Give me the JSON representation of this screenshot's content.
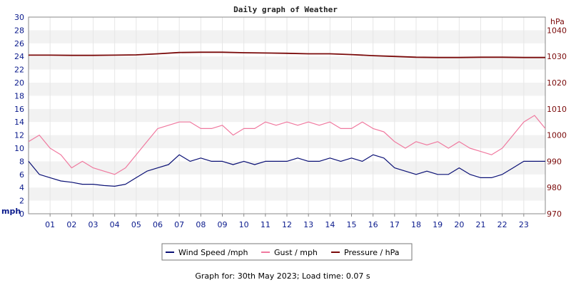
{
  "chart_data": {
    "type": "line",
    "title": "Daily graph of Weather",
    "x_ticks": [
      "01",
      "02",
      "03",
      "04",
      "05",
      "06",
      "07",
      "08",
      "09",
      "10",
      "11",
      "12",
      "13",
      "14",
      "15",
      "16",
      "17",
      "18",
      "19",
      "20",
      "21",
      "22",
      "23"
    ],
    "x_range": [
      0,
      24
    ],
    "y_left": {
      "unit": "mph",
      "range": [
        0,
        30
      ],
      "ticks": [
        0,
        2,
        4,
        6,
        8,
        10,
        12,
        14,
        16,
        18,
        20,
        22,
        24,
        26,
        28,
        30
      ]
    },
    "y_right": {
      "unit": "hPa",
      "range": [
        970,
        1045
      ],
      "ticks": [
        970,
        980,
        990,
        1000,
        1010,
        1020,
        1030,
        1040
      ]
    },
    "legend_position": "bottom-center",
    "series": [
      {
        "name": "Wind Speed /mph",
        "color": "#0a1075",
        "axis": "left",
        "x": [
          0,
          0.5,
          1,
          1.5,
          2,
          2.5,
          3,
          3.5,
          4,
          4.5,
          5,
          5.5,
          6,
          6.5,
          7,
          7.5,
          8,
          8.5,
          9,
          9.5,
          10,
          10.5,
          11,
          11.5,
          12,
          12.5,
          13,
          13.5,
          14,
          14.5,
          15,
          15.5,
          16,
          16.5,
          17,
          17.5,
          18,
          18.5,
          19,
          19.5,
          20,
          20.5,
          21,
          21.5,
          22,
          22.5,
          23,
          23.5,
          24
        ],
        "values": [
          8,
          6,
          5.5,
          5,
          4.8,
          4.5,
          4.5,
          4.3,
          4.2,
          4.5,
          5.5,
          6.5,
          7,
          7.5,
          9,
          8,
          8.5,
          8,
          8,
          7.5,
          8,
          7.5,
          8,
          8,
          8,
          8.5,
          8,
          8,
          8.5,
          8,
          8.5,
          8,
          9,
          8.5,
          7,
          6.5,
          6,
          6.5,
          6,
          6,
          7,
          6,
          5.5,
          5.5,
          6,
          7,
          8,
          8,
          8
        ]
      },
      {
        "name": "Gust / mph",
        "color": "#f0799f",
        "axis": "left",
        "x": [
          0,
          0.5,
          1,
          1.5,
          2,
          2.5,
          3,
          3.5,
          4,
          4.5,
          5,
          5.5,
          6,
          6.5,
          7,
          7.5,
          8,
          8.5,
          9,
          9.5,
          10,
          10.5,
          11,
          11.5,
          12,
          12.5,
          13,
          13.5,
          14,
          14.5,
          15,
          15.5,
          16,
          16.5,
          17,
          17.5,
          18,
          18.5,
          19,
          19.5,
          20,
          20.5,
          21,
          21.5,
          22,
          22.5,
          23,
          23.5,
          24
        ],
        "values": [
          11,
          12,
          10,
          9,
          7,
          8,
          7,
          6.5,
          6,
          7,
          9,
          11,
          13,
          13.5,
          14,
          14,
          13,
          13,
          13.5,
          12,
          13,
          13,
          14,
          13.5,
          14,
          13.5,
          14,
          13.5,
          14,
          13,
          13,
          14,
          13,
          12.5,
          11,
          10,
          11,
          10.5,
          11,
          10,
          11,
          10,
          9.5,
          9,
          10,
          12,
          14,
          15,
          13
        ]
      },
      {
        "name": "Pressure / hPa",
        "color": "#7a0a0a",
        "axis": "right",
        "x": [
          0,
          1,
          2,
          3,
          4,
          5,
          6,
          7,
          8,
          9,
          10,
          11,
          12,
          13,
          14,
          15,
          16,
          17,
          18,
          19,
          20,
          21,
          22,
          23,
          24
        ],
        "values": [
          1030.5,
          1030.5,
          1030.4,
          1030.4,
          1030.5,
          1030.6,
          1031,
          1031.5,
          1031.6,
          1031.6,
          1031.4,
          1031.3,
          1031.2,
          1031,
          1031,
          1030.7,
          1030.3,
          1030,
          1029.7,
          1029.6,
          1029.6,
          1029.7,
          1029.7,
          1029.6,
          1029.6
        ]
      }
    ]
  },
  "footer": {
    "text": "Graph for: 30th May 2023; Load time: 0.07 s"
  }
}
